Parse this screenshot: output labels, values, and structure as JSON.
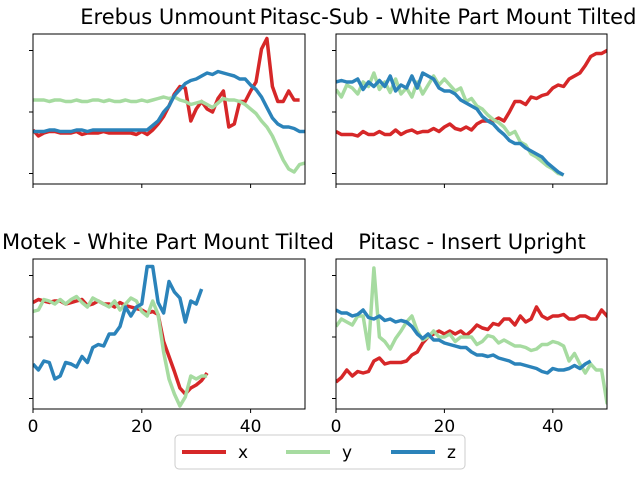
{
  "chart_data": [
    {
      "type": "line",
      "title": "Erebus Unmount",
      "xlim": [
        0,
        50
      ],
      "ylim": [
        0,
        1
      ],
      "xticks": [
        0,
        20,
        40
      ],
      "show_xtick_labels": false,
      "grid": false,
      "series": [
        {
          "name": "x",
          "values": [
            0.36,
            0.32,
            0.34,
            0.35,
            0.35,
            0.34,
            0.34,
            0.34,
            0.35,
            0.33,
            0.34,
            0.34,
            0.34,
            0.35,
            0.34,
            0.34,
            0.34,
            0.34,
            0.34,
            0.33,
            0.35,
            0.33,
            0.36,
            0.4,
            0.45,
            0.52,
            0.6,
            0.65,
            0.64,
            0.42,
            0.5,
            0.55,
            0.5,
            0.48,
            0.57,
            0.62,
            0.38,
            0.4,
            0.55,
            0.55,
            0.62,
            0.68,
            0.9,
            0.97,
            0.65,
            0.55,
            0.55,
            0.62,
            0.56,
            0.56
          ]
        },
        {
          "name": "y",
          "values": [
            0.56,
            0.56,
            0.56,
            0.55,
            0.56,
            0.56,
            0.55,
            0.55,
            0.56,
            0.55,
            0.55,
            0.56,
            0.56,
            0.55,
            0.56,
            0.55,
            0.55,
            0.56,
            0.55,
            0.55,
            0.56,
            0.55,
            0.56,
            0.57,
            0.58,
            0.57,
            0.58,
            0.56,
            0.55,
            0.53,
            0.54,
            0.55,
            0.53,
            0.51,
            0.54,
            0.57,
            0.56,
            0.56,
            0.55,
            0.53,
            0.5,
            0.47,
            0.42,
            0.38,
            0.32,
            0.24,
            0.16,
            0.1,
            0.08,
            0.13,
            0.14
          ]
        },
        {
          "name": "z",
          "values": [
            0.35,
            0.35,
            0.35,
            0.36,
            0.36,
            0.35,
            0.35,
            0.35,
            0.36,
            0.36,
            0.35,
            0.36,
            0.36,
            0.36,
            0.36,
            0.36,
            0.36,
            0.36,
            0.36,
            0.36,
            0.36,
            0.36,
            0.39,
            0.42,
            0.48,
            0.52,
            0.59,
            0.63,
            0.67,
            0.69,
            0.7,
            0.72,
            0.74,
            0.73,
            0.75,
            0.74,
            0.73,
            0.72,
            0.7,
            0.7,
            0.66,
            0.63,
            0.58,
            0.51,
            0.44,
            0.4,
            0.38,
            0.38,
            0.37,
            0.35,
            0.35
          ]
        }
      ]
    },
    {
      "type": "line",
      "title": "Pitasc-Sub - White Part Mount Tilted",
      "xlim": [
        0,
        50
      ],
      "ylim": [
        0,
        1
      ],
      "xticks": [
        0,
        20,
        40
      ],
      "show_xtick_labels": false,
      "grid": false,
      "series": [
        {
          "name": "x",
          "values": [
            0.35,
            0.33,
            0.33,
            0.33,
            0.32,
            0.35,
            0.33,
            0.33,
            0.35,
            0.33,
            0.33,
            0.36,
            0.33,
            0.35,
            0.36,
            0.34,
            0.35,
            0.35,
            0.37,
            0.35,
            0.38,
            0.4,
            0.37,
            0.36,
            0.38,
            0.36,
            0.4,
            0.42,
            0.42,
            0.42,
            0.44,
            0.42,
            0.48,
            0.55,
            0.55,
            0.53,
            0.58,
            0.57,
            0.59,
            0.6,
            0.64,
            0.66,
            0.65,
            0.7,
            0.72,
            0.74,
            0.79,
            0.85,
            0.87,
            0.87,
            0.89,
            0.91,
            0.96,
            0.93
          ]
        },
        {
          "name": "y",
          "values": [
            0.63,
            0.58,
            0.66,
            0.64,
            0.6,
            0.68,
            0.65,
            0.74,
            0.63,
            0.68,
            0.61,
            0.7,
            0.6,
            0.64,
            0.58,
            0.68,
            0.6,
            0.66,
            0.72,
            0.66,
            0.7,
            0.66,
            0.62,
            0.64,
            0.55,
            0.57,
            0.52,
            0.5,
            0.46,
            0.43,
            0.41,
            0.38,
            0.33,
            0.35,
            0.28,
            0.26,
            0.2,
            0.18,
            0.15,
            0.12,
            0.1,
            0.07,
            0.06
          ]
        },
        {
          "name": "z",
          "values": [
            0.68,
            0.69,
            0.68,
            0.68,
            0.7,
            0.63,
            0.68,
            0.65,
            0.69,
            0.65,
            0.72,
            0.62,
            0.66,
            0.64,
            0.72,
            0.64,
            0.74,
            0.72,
            0.7,
            0.64,
            0.62,
            0.62,
            0.6,
            0.56,
            0.54,
            0.52,
            0.5,
            0.45,
            0.42,
            0.4,
            0.36,
            0.33,
            0.29,
            0.27,
            0.27,
            0.24,
            0.22,
            0.2,
            0.18,
            0.14,
            0.11,
            0.08,
            0.06
          ]
        }
      ]
    },
    {
      "type": "line",
      "title": "Motek - White Part Mount Tilted",
      "xlim": [
        0,
        50
      ],
      "ylim": [
        0,
        1
      ],
      "xticks": [
        0,
        20,
        40
      ],
      "xtick_labels": [
        "0",
        "20",
        "40"
      ],
      "show_xtick_labels": true,
      "grid": false,
      "series": [
        {
          "name": "x",
          "values": [
            0.71,
            0.73,
            0.72,
            0.71,
            0.72,
            0.72,
            0.7,
            0.71,
            0.72,
            0.73,
            0.69,
            0.7,
            0.72,
            0.7,
            0.7,
            0.68,
            0.71,
            0.69,
            0.68,
            0.67,
            0.66,
            0.64,
            0.65,
            0.63,
            0.45,
            0.35,
            0.25,
            0.14,
            0.1,
            0.14,
            0.16,
            0.19,
            0.24
          ]
        },
        {
          "name": "y",
          "values": [
            0.65,
            0.66,
            0.73,
            0.72,
            0.7,
            0.73,
            0.7,
            0.73,
            0.75,
            0.71,
            0.68,
            0.74,
            0.72,
            0.7,
            0.68,
            0.72,
            0.66,
            0.7,
            0.74,
            0.72,
            0.65,
            0.62,
            0.72,
            0.63,
            0.38,
            0.2,
            0.1,
            0.02,
            0.08,
            0.22,
            0.2,
            0.22,
            0.22
          ]
        },
        {
          "name": "z",
          "values": [
            0.3,
            0.26,
            0.32,
            0.31,
            0.2,
            0.22,
            0.31,
            0.3,
            0.28,
            0.35,
            0.31,
            0.41,
            0.43,
            0.42,
            0.5,
            0.5,
            0.55,
            0.68,
            0.62,
            0.68,
            0.7,
            0.95,
            0.95,
            0.71,
            0.64,
            0.85,
            0.78,
            0.74,
            0.58,
            0.72,
            0.7,
            0.8
          ]
        }
      ]
    },
    {
      "type": "line",
      "title": "Pitasc - Insert Upright",
      "xlim": [
        0,
        50
      ],
      "ylim": [
        0,
        1
      ],
      "xticks": [
        0,
        20,
        40
      ],
      "xtick_labels": [
        "0",
        "20",
        "40"
      ],
      "show_xtick_labels": true,
      "grid": false,
      "series": [
        {
          "name": "x",
          "values": [
            0.18,
            0.21,
            0.26,
            0.22,
            0.25,
            0.24,
            0.25,
            0.32,
            0.34,
            0.3,
            0.31,
            0.31,
            0.31,
            0.32,
            0.36,
            0.38,
            0.44,
            0.48,
            0.5,
            0.52,
            0.5,
            0.52,
            0.5,
            0.52,
            0.49,
            0.52,
            0.56,
            0.54,
            0.53,
            0.57,
            0.56,
            0.6,
            0.6,
            0.56,
            0.62,
            0.58,
            0.6,
            0.68,
            0.62,
            0.6,
            0.62,
            0.62,
            0.63,
            0.6,
            0.6,
            0.62,
            0.62,
            0.6,
            0.6,
            0.66,
            0.62,
            0.58
          ]
        },
        {
          "name": "y",
          "values": [
            0.55,
            0.6,
            0.58,
            0.56,
            0.62,
            0.62,
            0.4,
            0.94,
            0.48,
            0.45,
            0.4,
            0.47,
            0.52,
            0.58,
            0.62,
            0.52,
            0.46,
            0.48,
            0.52,
            0.48,
            0.48,
            0.5,
            0.45,
            0.48,
            0.48,
            0.48,
            0.43,
            0.45,
            0.49,
            0.48,
            0.44,
            0.46,
            0.44,
            0.42,
            0.42,
            0.41,
            0.39,
            0.4,
            0.43,
            0.43,
            0.45,
            0.44,
            0.42,
            0.32,
            0.37,
            0.3,
            0.24,
            0.3,
            0.26,
            0.26,
            0.04,
            0.16
          ]
        },
        {
          "name": "z",
          "values": [
            0.66,
            0.64,
            0.64,
            0.62,
            0.63,
            0.66,
            0.61,
            0.6,
            0.62,
            0.59,
            0.6,
            0.58,
            0.59,
            0.58,
            0.55,
            0.5,
            0.47,
            0.5,
            0.46,
            0.46,
            0.44,
            0.43,
            0.42,
            0.41,
            0.41,
            0.38,
            0.36,
            0.36,
            0.35,
            0.36,
            0.34,
            0.33,
            0.32,
            0.3,
            0.3,
            0.29,
            0.28,
            0.27,
            0.25,
            0.24,
            0.27,
            0.26,
            0.26,
            0.27,
            0.29,
            0.27,
            0.3,
            0.32
          ]
        }
      ]
    }
  ],
  "legend": {
    "placement": "bottom-center",
    "entries": [
      {
        "label": "x",
        "color": "#d62728"
      },
      {
        "label": "y",
        "color": "#a6dba0"
      },
      {
        "label": "z",
        "color": "#2b83ba"
      }
    ]
  },
  "colors": {
    "x": "#d62728",
    "y": "#a6dba0",
    "z": "#2b83ba"
  }
}
